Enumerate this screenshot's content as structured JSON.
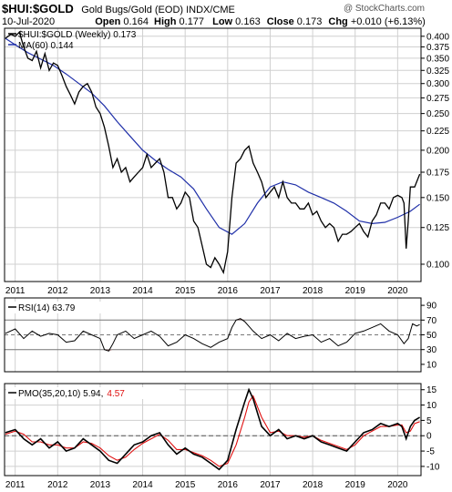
{
  "header": {
    "symbol": "$HUI:$GOLD",
    "description": "Gold Bugs/Gold (EOD)  INDX/CME",
    "watermark": "@ StockCharts.com",
    "date": "10-Jul-2020",
    "open_label": "Open",
    "open": "0.164",
    "high_label": "High",
    "high": "0.177",
    "low_label": "Low",
    "low": "0.163",
    "close_label": "Close",
    "close": "0.173",
    "chg_label": "Chg",
    "chg": "+0.010 (+6.13%)"
  },
  "colors": {
    "price": "#000000",
    "ma": "#1f2fa8",
    "rsi_fill": "#a07070",
    "pmo_signal": "#e01010",
    "grid": "#d0d0d0",
    "frame": "#000000"
  },
  "chart_data": [
    {
      "type": "line",
      "panel": "price",
      "legend": [
        {
          "name": "$HUI:$GOLD (Weekly) 0.173",
          "color": "#000000",
          "style": "line"
        },
        {
          "name": "MA(60) 0.144",
          "color": "#1f2fa8",
          "style": "line"
        }
      ],
      "y_axis_side": "right",
      "y_scale": "log",
      "yticks": [
        0.1,
        0.125,
        0.15,
        0.175,
        0.2,
        0.225,
        0.25,
        0.275,
        0.3,
        0.325,
        0.35,
        0.375,
        0.4
      ],
      "ytick_labels": [
        "0.100",
        "0.125",
        "0.150",
        "0.175",
        "0.200",
        "0.225",
        "0.250",
        "0.275",
        "0.300",
        "0.325",
        "0.350",
        "0.375",
        "0.400"
      ],
      "ylim": [
        0.09,
        0.42
      ],
      "xlim": [
        2010.75,
        2020.55
      ],
      "xticks": [
        2011,
        2012,
        2013,
        2014,
        2015,
        2016,
        2017,
        2018,
        2019,
        2020
      ],
      "xtick_labels": [
        "2011",
        "2012",
        "2013",
        "2014",
        "2015",
        "2016",
        "2017",
        "2018",
        "2019",
        "2020"
      ],
      "series": [
        {
          "name": "$HUI:$GOLD (Weekly)",
          "x": [
            2010.77,
            2010.9,
            2011.0,
            2011.1,
            2011.2,
            2011.3,
            2011.4,
            2011.5,
            2011.6,
            2011.7,
            2011.8,
            2011.9,
            2012.0,
            2012.1,
            2012.2,
            2012.3,
            2012.4,
            2012.5,
            2012.6,
            2012.7,
            2012.8,
            2012.9,
            2013.0,
            2013.1,
            2013.2,
            2013.3,
            2013.4,
            2013.5,
            2013.6,
            2013.7,
            2013.8,
            2013.9,
            2014.0,
            2014.1,
            2014.2,
            2014.3,
            2014.4,
            2014.5,
            2014.6,
            2014.7,
            2014.8,
            2014.9,
            2015.0,
            2015.1,
            2015.2,
            2015.3,
            2015.4,
            2015.5,
            2015.6,
            2015.7,
            2015.8,
            2015.9,
            2016.0,
            2016.1,
            2016.2,
            2016.3,
            2016.4,
            2016.5,
            2016.6,
            2016.7,
            2016.8,
            2016.9,
            2017.0,
            2017.1,
            2017.2,
            2017.3,
            2017.4,
            2017.5,
            2017.6,
            2017.7,
            2017.8,
            2017.9,
            2018.0,
            2018.1,
            2018.2,
            2018.3,
            2018.4,
            2018.5,
            2018.6,
            2018.7,
            2018.8,
            2018.9,
            2019.0,
            2019.1,
            2019.2,
            2019.3,
            2019.4,
            2019.5,
            2019.6,
            2019.7,
            2019.8,
            2019.9,
            2020.0,
            2020.1,
            2020.15,
            2020.2,
            2020.25,
            2020.3,
            2020.4,
            2020.52
          ],
          "values": [
            0.395,
            0.405,
            0.4,
            0.41,
            0.375,
            0.35,
            0.345,
            0.365,
            0.33,
            0.36,
            0.325,
            0.34,
            0.335,
            0.315,
            0.295,
            0.28,
            0.265,
            0.285,
            0.295,
            0.3,
            0.285,
            0.26,
            0.25,
            0.23,
            0.205,
            0.18,
            0.19,
            0.175,
            0.18,
            0.165,
            0.17,
            0.175,
            0.18,
            0.195,
            0.18,
            0.185,
            0.19,
            0.175,
            0.15,
            0.15,
            0.14,
            0.145,
            0.155,
            0.15,
            0.13,
            0.125,
            0.112,
            0.1,
            0.098,
            0.104,
            0.1,
            0.095,
            0.108,
            0.15,
            0.185,
            0.19,
            0.2,
            0.205,
            0.185,
            0.175,
            0.165,
            0.15,
            0.155,
            0.16,
            0.15,
            0.165,
            0.15,
            0.145,
            0.145,
            0.14,
            0.14,
            0.145,
            0.135,
            0.138,
            0.13,
            0.125,
            0.128,
            0.125,
            0.115,
            0.12,
            0.12,
            0.122,
            0.125,
            0.128,
            0.122,
            0.118,
            0.13,
            0.135,
            0.145,
            0.145,
            0.14,
            0.15,
            0.152,
            0.15,
            0.145,
            0.11,
            0.13,
            0.16,
            0.16,
            0.173
          ]
        },
        {
          "name": "MA(60)",
          "x": [
            2010.77,
            2011.0,
            2011.3,
            2011.6,
            2011.9,
            2012.2,
            2012.5,
            2012.8,
            2013.1,
            2013.4,
            2013.7,
            2014.0,
            2014.3,
            2014.6,
            2014.9,
            2015.2,
            2015.5,
            2015.8,
            2016.1,
            2016.4,
            2016.7,
            2017.0,
            2017.3,
            2017.6,
            2017.9,
            2018.2,
            2018.5,
            2018.8,
            2019.1,
            2019.4,
            2019.7,
            2020.0,
            2020.3,
            2020.52
          ],
          "values": [
            0.395,
            0.38,
            0.362,
            0.348,
            0.335,
            0.318,
            0.3,
            0.283,
            0.262,
            0.238,
            0.218,
            0.2,
            0.188,
            0.178,
            0.17,
            0.158,
            0.14,
            0.125,
            0.12,
            0.128,
            0.145,
            0.16,
            0.165,
            0.162,
            0.155,
            0.15,
            0.145,
            0.138,
            0.13,
            0.128,
            0.129,
            0.133,
            0.138,
            0.144
          ]
        }
      ]
    },
    {
      "type": "line",
      "panel": "rsi",
      "legend": [
        {
          "name": "RSI(14) 63.79",
          "color": "#000000",
          "style": "line"
        }
      ],
      "y_axis_side": "right",
      "yticks": [
        10,
        30,
        50,
        70,
        90
      ],
      "ytick_labels": [
        "10",
        "30",
        "50",
        "70",
        "90"
      ],
      "ylim": [
        0,
        100
      ],
      "guide_lines": [
        30,
        50,
        70
      ],
      "x": [
        2010.77,
        2011.0,
        2011.2,
        2011.4,
        2011.6,
        2011.8,
        2012.0,
        2012.2,
        2012.4,
        2012.6,
        2012.8,
        2013.0,
        2013.1,
        2013.2,
        2013.3,
        2013.4,
        2013.6,
        2013.8,
        2014.0,
        2014.2,
        2014.4,
        2014.6,
        2014.8,
        2015.0,
        2015.2,
        2015.4,
        2015.6,
        2015.8,
        2016.0,
        2016.1,
        2016.2,
        2016.3,
        2016.4,
        2016.6,
        2016.8,
        2017.0,
        2017.2,
        2017.4,
        2017.6,
        2017.8,
        2018.0,
        2018.2,
        2018.4,
        2018.6,
        2018.8,
        2019.0,
        2019.2,
        2019.4,
        2019.6,
        2019.8,
        2020.0,
        2020.15,
        2020.25,
        2020.35,
        2020.45,
        2020.52
      ],
      "values": [
        52,
        58,
        45,
        55,
        48,
        52,
        50,
        40,
        42,
        55,
        50,
        45,
        30,
        28,
        38,
        50,
        55,
        45,
        50,
        55,
        48,
        35,
        40,
        50,
        45,
        38,
        33,
        40,
        45,
        60,
        70,
        72,
        68,
        55,
        45,
        50,
        42,
        52,
        45,
        48,
        50,
        40,
        45,
        35,
        40,
        52,
        55,
        60,
        65,
        55,
        50,
        38,
        45,
        65,
        62,
        64
      ]
    },
    {
      "type": "line",
      "panel": "pmo",
      "legend": [
        {
          "name": "PMO(35,20,10) 5.94,",
          "color": "#000000",
          "style": "line"
        },
        {
          "name": "4.57",
          "color": "#e01010",
          "style": "line"
        }
      ],
      "y_axis_side": "right",
      "yticks": [
        -10,
        -5,
        0,
        5,
        10,
        15
      ],
      "ytick_labels": [
        "-10",
        "-5",
        "0",
        "5",
        "10",
        "15"
      ],
      "ylim": [
        -13,
        17
      ],
      "zero_line": 0,
      "xlim": [
        2010.75,
        2020.55
      ],
      "xticks": [
        2011,
        2012,
        2013,
        2014,
        2015,
        2016,
        2017,
        2018,
        2019,
        2020
      ],
      "xtick_labels": [
        "2011",
        "2012",
        "2013",
        "2014",
        "2015",
        "2016",
        "2017",
        "2018",
        "2019",
        "2020"
      ],
      "series": [
        {
          "name": "PMO",
          "x": [
            2010.77,
            2011.0,
            2011.2,
            2011.4,
            2011.6,
            2011.8,
            2012.0,
            2012.2,
            2012.4,
            2012.6,
            2012.8,
            2013.0,
            2013.2,
            2013.4,
            2013.6,
            2013.8,
            2014.0,
            2014.2,
            2014.4,
            2014.6,
            2014.8,
            2015.0,
            2015.2,
            2015.4,
            2015.6,
            2015.8,
            2016.0,
            2016.2,
            2016.4,
            2016.5,
            2016.6,
            2016.8,
            2017.0,
            2017.2,
            2017.4,
            2017.6,
            2017.8,
            2018.0,
            2018.2,
            2018.4,
            2018.6,
            2018.8,
            2019.0,
            2019.2,
            2019.4,
            2019.6,
            2019.8,
            2020.0,
            2020.1,
            2020.2,
            2020.3,
            2020.4,
            2020.52
          ],
          "values": [
            1,
            2,
            -1,
            -3,
            -1,
            -4,
            -2,
            -5,
            -4,
            -1,
            -3,
            -5,
            -8,
            -9,
            -6,
            -3,
            -2,
            0,
            1,
            -3,
            -6,
            -4,
            -6,
            -7,
            -9,
            -11,
            -8,
            2,
            11,
            15,
            12,
            3,
            0,
            2,
            -1,
            0,
            -1,
            0,
            -2,
            -3,
            -4,
            -5,
            -2,
            1,
            2,
            4,
            3,
            4,
            3,
            -1,
            3,
            5,
            6
          ]
        },
        {
          "name": "Signal",
          "x": [
            2010.77,
            2011.0,
            2011.2,
            2011.4,
            2011.6,
            2011.8,
            2012.0,
            2012.2,
            2012.4,
            2012.6,
            2012.8,
            2013.0,
            2013.2,
            2013.4,
            2013.6,
            2013.8,
            2014.0,
            2014.2,
            2014.4,
            2014.6,
            2014.8,
            2015.0,
            2015.2,
            2015.4,
            2015.6,
            2015.8,
            2016.0,
            2016.2,
            2016.4,
            2016.5,
            2016.6,
            2016.8,
            2017.0,
            2017.2,
            2017.4,
            2017.6,
            2017.8,
            2018.0,
            2018.2,
            2018.4,
            2018.6,
            2018.8,
            2019.0,
            2019.2,
            2019.4,
            2019.6,
            2019.8,
            2020.0,
            2020.1,
            2020.2,
            2020.3,
            2020.4,
            2020.52
          ],
          "values": [
            0.5,
            1.5,
            0.5,
            -2,
            -2,
            -3,
            -3,
            -4,
            -4,
            -2,
            -2.5,
            -4,
            -6.5,
            -8,
            -7,
            -4.5,
            -2.5,
            -1,
            0.5,
            -1.5,
            -4.5,
            -4.5,
            -5.5,
            -6.5,
            -8,
            -10,
            -9,
            -3,
            6,
            11,
            13,
            6,
            1,
            1.5,
            0,
            0,
            -0.5,
            0,
            -1.5,
            -2.5,
            -3.5,
            -4.5,
            -3,
            0,
            1.5,
            3,
            3,
            3.5,
            3.5,
            1,
            1.5,
            4,
            4.57
          ]
        }
      ]
    }
  ]
}
